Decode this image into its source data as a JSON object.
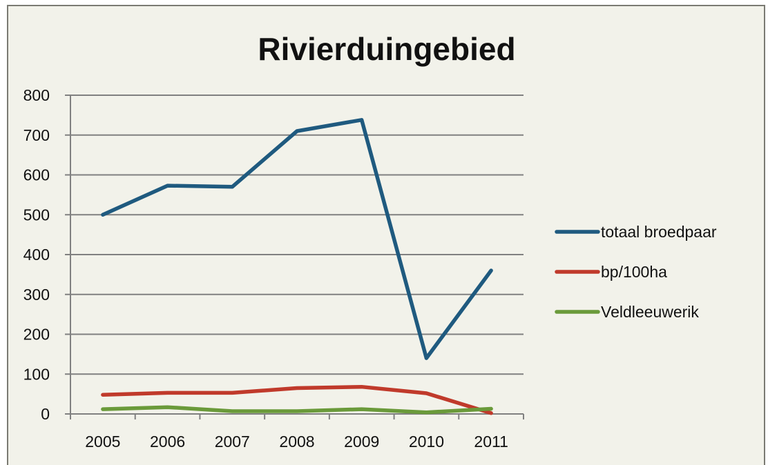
{
  "chart_data": {
    "type": "line",
    "title": "Rivierduingebied",
    "categories": [
      "2005",
      "2006",
      "2007",
      "2008",
      "2009",
      "2010",
      "2011"
    ],
    "ylim": [
      0,
      800
    ],
    "yticks": [
      "0",
      "100",
      "200",
      "300",
      "400",
      "500",
      "600",
      "700",
      "800"
    ],
    "grid": true,
    "legend_position": "right",
    "series": [
      {
        "name": "totaal broedpaar",
        "color": "#1f5a7f",
        "values": [
          500,
          573,
          570,
          710,
          738,
          140,
          360
        ]
      },
      {
        "name": "bp/100ha",
        "color": "#c03a2b",
        "values": [
          48,
          53,
          53,
          65,
          68,
          52,
          2
        ]
      },
      {
        "name": "Veldleeuwerik",
        "color": "#6a9a3a",
        "values": [
          12,
          17,
          7,
          7,
          12,
          4,
          13
        ]
      }
    ]
  }
}
